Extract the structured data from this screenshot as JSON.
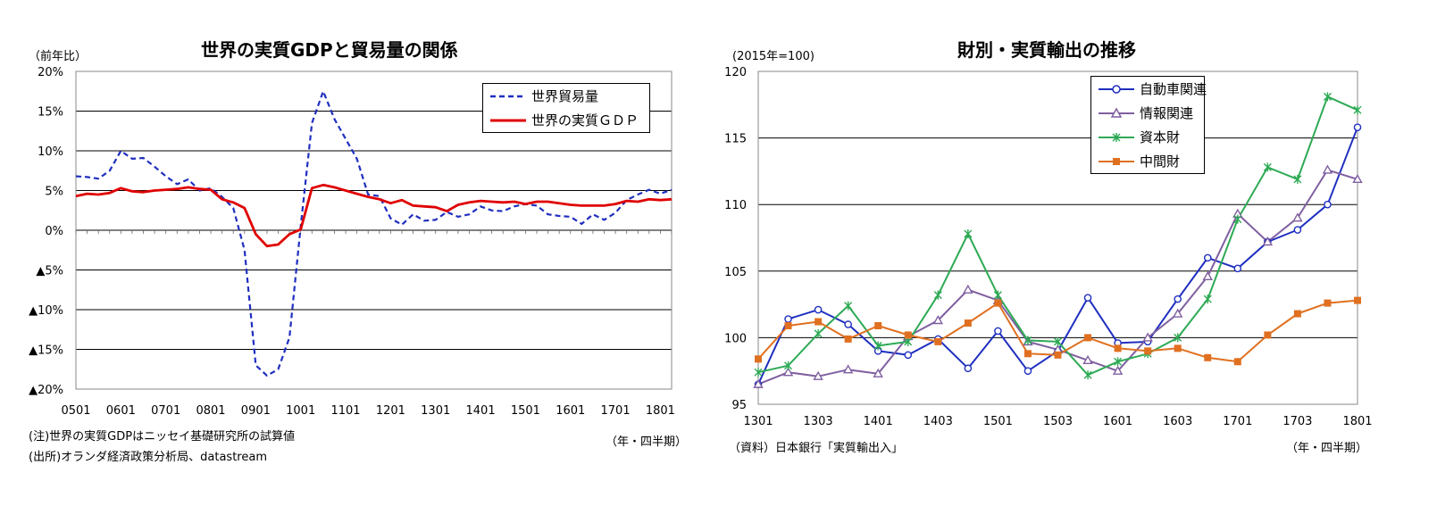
{
  "left": {
    "title": "世界の実質GDPと貿易量の関係",
    "unit": "（前年比）",
    "x_unit": "（年・四半期）",
    "note1": "(注)世界の実質GDPはニッセイ基礎研究所の試算値",
    "note2": "(出所)オランダ経済政策分析局、datastream"
  },
  "right": {
    "title": "財別・実質輸出の推移",
    "unit": "(2015年=100)",
    "x_unit": "（年・四半期）",
    "source": "（資料）日本銀行「実質輸出入」"
  },
  "chart_data": [
    {
      "type": "line",
      "title": "世界の実質GDPと貿易量の関係",
      "ylabel": "（前年比）",
      "ylim": [
        -20,
        20
      ],
      "y_ticks": [
        20,
        15,
        10,
        5,
        0,
        -5,
        -10,
        -15,
        -20
      ],
      "y_tick_labels": [
        "20%",
        "15%",
        "10%",
        "5%",
        "0%",
        "▲5%",
        "▲10%",
        "▲15%",
        "▲20%"
      ],
      "x_tick_labels": [
        "0501",
        "0601",
        "0701",
        "0801",
        "0901",
        "1001",
        "1101",
        "1201",
        "1301",
        "1401",
        "1501",
        "1601",
        "1701",
        "1801"
      ],
      "x_start": "2005Q1",
      "grid": true,
      "legend": "top-right",
      "series": [
        {
          "name": "世界貿易量",
          "color": "#1f2fbf",
          "style": "dashed",
          "values": [
            6.8,
            6.7,
            6.5,
            7.5,
            10.0,
            9.0,
            9.1,
            8.0,
            6.8,
            5.8,
            6.4,
            5.0,
            5.3,
            4.2,
            2.8,
            -2.5,
            -17.0,
            -18.3,
            -17.5,
            -13.5,
            0.5,
            13.5,
            17.5,
            14.0,
            11.5,
            9.0,
            4.5,
            4.3,
            1.5,
            0.7,
            2.0,
            1.2,
            1.3,
            2.3,
            1.7,
            2.0,
            3.0,
            2.5,
            2.4,
            3.0,
            3.3,
            3.1,
            2.0,
            1.8,
            1.7,
            0.8,
            2.0,
            1.3,
            2.2,
            3.8,
            4.5,
            5.1,
            4.6,
            5.1
          ]
        },
        {
          "name": "世界の実質ＧＤＰ",
          "color": "#e00000",
          "style": "solid",
          "values": [
            4.3,
            4.6,
            4.5,
            4.7,
            5.3,
            4.9,
            4.8,
            5.0,
            5.1,
            5.2,
            5.4,
            5.2,
            5.1,
            3.9,
            3.5,
            2.8,
            -0.5,
            -2.0,
            -1.8,
            -0.5,
            0.1,
            5.3,
            5.7,
            5.4,
            5.0,
            4.6,
            4.2,
            3.9,
            3.4,
            3.8,
            3.1,
            3.0,
            2.9,
            2.4,
            3.2,
            3.5,
            3.7,
            3.6,
            3.5,
            3.6,
            3.3,
            3.6,
            3.6,
            3.4,
            3.2,
            3.1,
            3.1,
            3.1,
            3.3,
            3.7,
            3.6,
            3.9,
            3.8,
            3.9
          ]
        }
      ]
    },
    {
      "type": "line",
      "title": "財別・実質輸出の推移",
      "ylabel": "(2015年=100)",
      "ylim": [
        95,
        120
      ],
      "y_ticks": [
        95,
        100,
        105,
        110,
        115,
        120
      ],
      "y_tick_labels": [
        "95",
        "100",
        "105",
        "110",
        "115",
        "120"
      ],
      "x_tick_labels": [
        "1301",
        "1303",
        "1401",
        "1403",
        "1501",
        "1503",
        "1601",
        "1603",
        "1701",
        "1703",
        "1801"
      ],
      "x_start": "2013Q1",
      "grid": true,
      "legend": "top-right",
      "series": [
        {
          "name": "自動車関連",
          "color": "#1f2fbf",
          "marker": "circle",
          "values": [
            96.5,
            101.4,
            102.1,
            101.0,
            99.0,
            98.7,
            99.9,
            97.7,
            100.5,
            97.5,
            99.0,
            103.0,
            99.6,
            99.7,
            102.9,
            106.0,
            105.2,
            107.2,
            108.1,
            110.0,
            115.8
          ]
        },
        {
          "name": "情報関連",
          "color": "#7f5fa0",
          "marker": "triangle",
          "values": [
            96.5,
            97.4,
            97.1,
            97.6,
            97.3,
            100.1,
            101.3,
            103.6,
            102.8,
            99.7,
            99.1,
            98.3,
            97.5,
            100.0,
            101.8,
            104.6,
            109.3,
            107.2,
            109.0,
            112.6,
            111.9
          ]
        },
        {
          "name": "資本財",
          "color": "#2eaa55",
          "marker": "x",
          "values": [
            97.4,
            97.9,
            100.3,
            102.4,
            99.4,
            99.7,
            103.2,
            107.8,
            103.2,
            99.8,
            99.7,
            97.2,
            98.2,
            98.8,
            100.0,
            102.9,
            108.9,
            112.8,
            111.9,
            118.1,
            117.1
          ]
        },
        {
          "name": "中間財",
          "color": "#e07020",
          "marker": "square",
          "values": [
            98.4,
            100.9,
            101.2,
            99.9,
            100.9,
            100.2,
            99.7,
            101.1,
            102.6,
            98.8,
            98.7,
            100.0,
            99.2,
            99.0,
            99.2,
            98.5,
            98.2,
            100.2,
            101.8,
            102.6,
            102.8
          ]
        }
      ]
    }
  ]
}
